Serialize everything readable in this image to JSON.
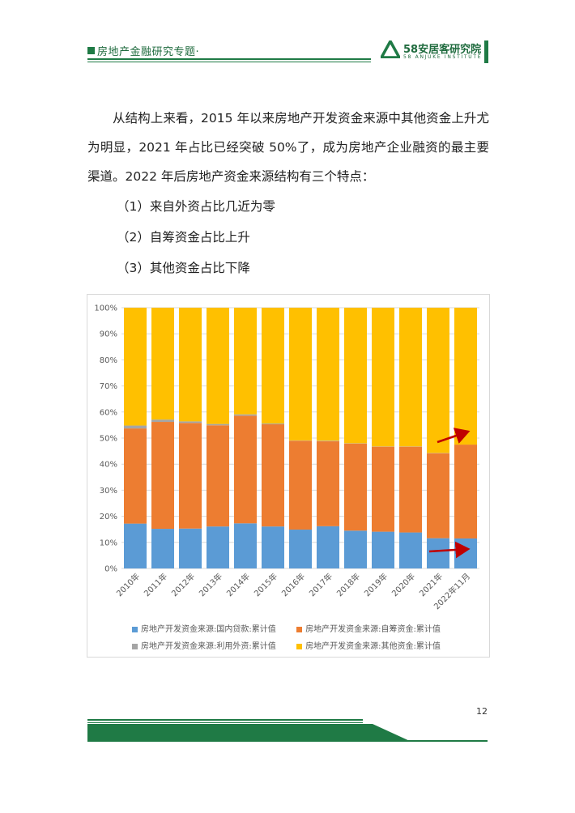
{
  "header": {
    "title": "房地产金融研究专题·",
    "logo_name": "58安居客研究院",
    "logo_sub": "58 ANJUKE INSTITUTE",
    "accent_color": "#1f7a45",
    "logo_icon": "triangle-logo-icon"
  },
  "body": {
    "paragraph": "从结构上来看，2015 年以来房地产开发资金来源中其他资金上升尤为明显，2021 年占比已经突破 50%了，成为房地产企业融资的最主要渠道。2022 年后房地产资金来源结构有三个特点：",
    "items": [
      "（1）来自外资占比几近为零",
      "（2）自筹资金占比上升",
      "（3）其他资金占比下降"
    ]
  },
  "chart_data": {
    "type": "bar",
    "stacked": true,
    "normalized": true,
    "categories": [
      "2010年",
      "2011年",
      "2012年",
      "2013年",
      "2014年",
      "2015年",
      "2016年",
      "2017年",
      "2018年",
      "2019年",
      "2020年",
      "2021年",
      "2022年11月"
    ],
    "y_ticks": [
      "0%",
      "10%",
      "20%",
      "30%",
      "40%",
      "50%",
      "60%",
      "70%",
      "80%",
      "90%",
      "100%"
    ],
    "ylim": [
      0,
      100
    ],
    "grid": true,
    "legend_position": "bottom",
    "series": [
      {
        "name": "房地产开发资金来源:国内贷款:累计值",
        "color": "#5b9bd5",
        "values": [
          17.2,
          15.2,
          15.3,
          16.1,
          17.3,
          16.1,
          14.9,
          16.2,
          14.5,
          14.1,
          13.8,
          11.6,
          11.5
        ]
      },
      {
        "name": "房地产开发资金来源:自筹资金:累计值",
        "color": "#ed7d31",
        "values": [
          36.5,
          41.0,
          40.5,
          38.8,
          41.3,
          39.2,
          34.1,
          32.6,
          33.4,
          32.6,
          32.9,
          32.6,
          36.0
        ]
      },
      {
        "name": "房地产开发资金来源:利用外资:累计值",
        "color": "#a5a5a5",
        "values": [
          1.1,
          0.9,
          0.6,
          0.5,
          0.5,
          0.3,
          0.1,
          0.2,
          0.1,
          0.1,
          0.1,
          0.1,
          0.0
        ]
      },
      {
        "name": "房地产开发资金来源:其他资金:累计值",
        "color": "#ffc000",
        "values": [
          45.2,
          42.9,
          43.6,
          44.6,
          40.9,
          44.4,
          50.9,
          51.0,
          52.0,
          53.2,
          53.2,
          55.7,
          52.5
        ]
      }
    ],
    "arrow_color": "#c00000"
  },
  "footer": {
    "page_number": "12"
  }
}
